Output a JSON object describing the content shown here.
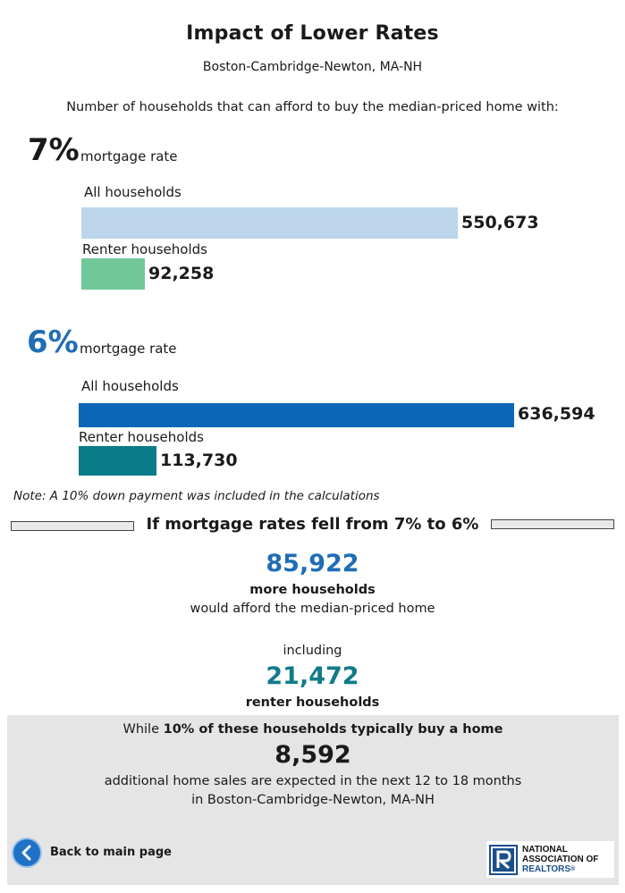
{
  "title": "Impact of Lower Rates",
  "location": "Boston-Cambridge-Newton, MA-NH",
  "intro": "Number of households that can afford to buy the median-priced home with:",
  "scenario_7": {
    "rate": "7%",
    "rate_label": "mortgage rate",
    "all_label": "All households",
    "all_value": "550,673",
    "renter_label": "Renter households",
    "renter_value": "92,258"
  },
  "scenario_6": {
    "rate": "6%",
    "rate_label": "mortgage rate",
    "all_label": "All households",
    "all_value": "636,594",
    "renter_label": "Renter households",
    "renter_value": "113,730"
  },
  "chart_data": {
    "type": "bar",
    "categories": [
      "All households",
      "Renter households"
    ],
    "series": [
      {
        "name": "7%",
        "values": [
          550673,
          92258
        ]
      },
      {
        "name": "6%",
        "values": [
          636594,
          113730
        ]
      }
    ]
  },
  "colors": {
    "all_7": "#bcd5eb",
    "renter_7": "#70c899",
    "all_6": "#0b67b7",
    "renter_6": "#0a7b8a",
    "rate_6_text": "#1f6db5",
    "renter_num": "#127b8a"
  },
  "note": "Note: A 10% down payment was included in the calculations",
  "section_head": "If mortgage rates fell from 7% to 6%",
  "more": {
    "value": "85,922",
    "line1": "more households",
    "line2": "would afford the median-priced home"
  },
  "including": "including",
  "renters": {
    "value": "21,472",
    "line": "renter households"
  },
  "panel": {
    "while_prefix": "While ",
    "while_bold": "10% of these households typically buy a home",
    "sales_value": "8,592",
    "line1": "additional home sales are expected in the next 12 to 18 months",
    "line2": "in Boston-Cambridge-Newton, MA-NH"
  },
  "back_label": "Back to main page",
  "back_icon": "chevron-left-icon",
  "logo": {
    "line1": "NATIONAL",
    "line2": "ASSOCIATION OF",
    "line3": "REALTORS",
    "reg": "®"
  }
}
